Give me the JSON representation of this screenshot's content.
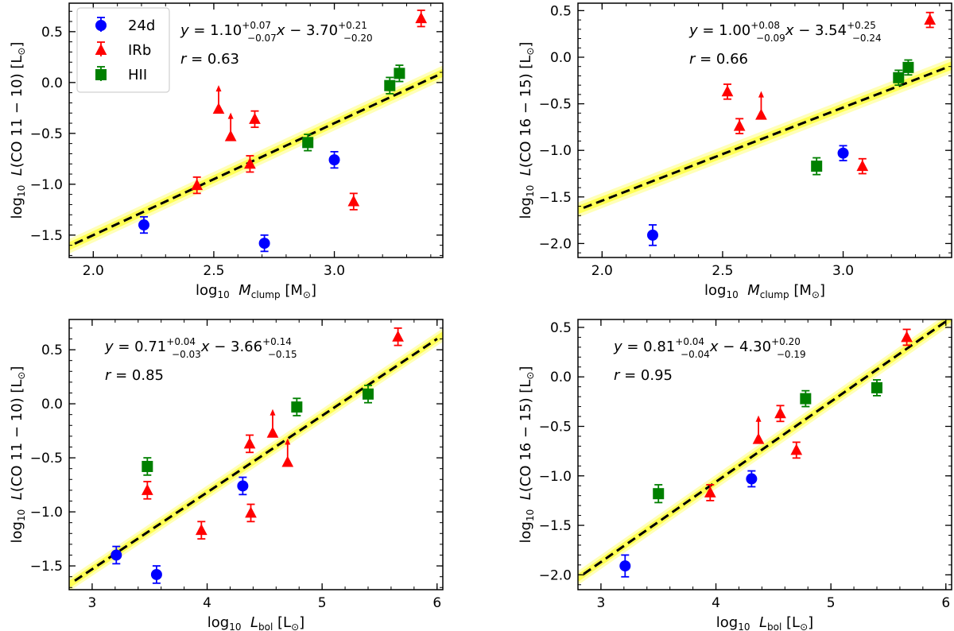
{
  "colors": {
    "24d": "#0000ff",
    "IRb": "#ff0000",
    "HII": "#008000",
    "fit_line": "#000000",
    "band": "#ffff33"
  },
  "legend": [
    {
      "key": "24d",
      "label": "24d",
      "marker": "circle"
    },
    {
      "key": "IRb",
      "label": "IRb",
      "marker": "triangle"
    },
    {
      "key": "HII",
      "label": "HII",
      "marker": "square"
    }
  ],
  "chart_data": [
    {
      "type": "scatter",
      "id": "panel-mclump-co11",
      "xlabel": {
        "pre": "log",
        "sub1": "10",
        "mid": " ",
        "var": "M",
        "sub2": "clump",
        "post": " [M",
        "sun": "⊙",
        "end": "]"
      },
      "ylabel": {
        "pre": "log",
        "sub1": "10",
        "mid": " ",
        "var": "L",
        "post": "(CO 11 − 10) [L",
        "sun": "⊙",
        "end": "]"
      },
      "xlim": [
        1.9,
        3.45
      ],
      "ylim": [
        -1.72,
        0.78
      ],
      "xticks": [
        2.0,
        2.5,
        3.0
      ],
      "xtick_labels": [
        "2.0",
        "2.5",
        "3.0"
      ],
      "yticks": [
        -1.5,
        -1.0,
        -0.5,
        0.0,
        0.5
      ],
      "ytick_labels": [
        "−1.5",
        "−1.0",
        "−0.5",
        "0.0",
        "0.5"
      ],
      "fit": {
        "slope": 1.1,
        "intercept": -3.7,
        "band": 0.04
      },
      "equation": {
        "y": "y",
        "eq": " = 1.10",
        "a_up": "+0.07",
        "a_lo": "−0.07",
        "x": "x",
        "minus": " − 3.70",
        "b_up": "+0.21",
        "b_lo": "−0.20"
      },
      "r_text": {
        "r": "r",
        "val": " = 0.63"
      },
      "eq_anchor": "top-center",
      "show_legend": true,
      "series": [
        {
          "name": "24d",
          "points": [
            [
              2.21,
              -1.4,
              0.08
            ],
            [
              2.71,
              -1.58,
              0.08
            ],
            [
              3.0,
              -0.76,
              0.08
            ]
          ]
        },
        {
          "name": "IRb",
          "points": [
            [
              2.43,
              -1.01,
              0.08
            ],
            [
              2.52,
              -0.26,
              0.0
            ],
            [
              2.57,
              -0.53,
              0.0
            ],
            [
              2.65,
              -0.8,
              0.08
            ],
            [
              2.67,
              -0.36,
              0.08
            ],
            [
              3.08,
              -1.17,
              0.08
            ],
            [
              3.36,
              0.63,
              0.08
            ]
          ]
        },
        {
          "name": "HII",
          "points": [
            [
              2.89,
              -0.59,
              0.08
            ],
            [
              3.23,
              -0.03,
              0.08
            ],
            [
              3.27,
              0.09,
              0.08
            ]
          ]
        }
      ],
      "limits": [
        {
          "name": "IRb",
          "x": 2.52,
          "y": -0.26
        },
        {
          "name": "IRb",
          "x": 2.57,
          "y": -0.53
        }
      ]
    },
    {
      "type": "scatter",
      "id": "panel-mclump-co16",
      "xlabel": {
        "pre": "log",
        "sub1": "10",
        "mid": " ",
        "var": "M",
        "sub2": "clump",
        "post": " [M",
        "sun": "⊙",
        "end": "]"
      },
      "ylabel": {
        "pre": "log",
        "sub1": "10",
        "mid": " ",
        "var": "L",
        "post": "(CO 16 − 15) [L",
        "sun": "⊙",
        "end": "]"
      },
      "xlim": [
        1.9,
        3.45
      ],
      "ylim": [
        -2.15,
        0.58
      ],
      "xticks": [
        2.0,
        2.5,
        3.0
      ],
      "xtick_labels": [
        "2.0",
        "2.5",
        "3.0"
      ],
      "yticks": [
        -2.0,
        -1.5,
        -1.0,
        -0.5,
        0.0,
        0.5
      ],
      "ytick_labels": [
        "−2.0",
        "−1.5",
        "−1.0",
        "−0.5",
        "0.0",
        "0.5"
      ],
      "fit": {
        "slope": 1.0,
        "intercept": -3.54,
        "band": 0.045
      },
      "equation": {
        "y": "y",
        "eq": " = 1.00",
        "a_up": "+0.08",
        "a_lo": "−0.09",
        "x": "x",
        "minus": " − 3.54",
        "b_up": "+0.25",
        "b_lo": "−0.24"
      },
      "r_text": {
        "r": "r",
        "val": " = 0.66"
      },
      "eq_anchor": "top-center",
      "show_legend": false,
      "series": [
        {
          "name": "24d",
          "points": [
            [
              2.21,
              -1.91,
              0.11
            ],
            [
              3.0,
              -1.03,
              0.08
            ]
          ]
        },
        {
          "name": "IRb",
          "points": [
            [
              2.52,
              -0.37,
              0.08
            ],
            [
              2.57,
              -0.74,
              0.08
            ],
            [
              2.66,
              -0.62,
              0.0
            ],
            [
              3.08,
              -1.17,
              0.08
            ],
            [
              3.36,
              0.4,
              0.08
            ]
          ]
        },
        {
          "name": "HII",
          "points": [
            [
              2.89,
              -1.17,
              0.09
            ],
            [
              3.23,
              -0.22,
              0.08
            ],
            [
              3.27,
              -0.11,
              0.08
            ]
          ]
        }
      ],
      "limits": [
        {
          "name": "IRb",
          "x": 2.66,
          "y": -0.62
        }
      ]
    },
    {
      "type": "scatter",
      "id": "panel-lbol-co11",
      "xlabel": {
        "pre": "log",
        "sub1": "10",
        "mid": " ",
        "var": "L",
        "sub2": "bol",
        "post": " [L",
        "sun": "⊙",
        "end": "]"
      },
      "ylabel": {
        "pre": "log",
        "sub1": "10",
        "mid": " ",
        "var": "L",
        "post": "(CO 11 − 10) [L",
        "sun": "⊙",
        "end": "]"
      },
      "xlim": [
        2.8,
        6.05
      ],
      "ylim": [
        -1.72,
        0.78
      ],
      "xticks": [
        3,
        4,
        5,
        6
      ],
      "xtick_labels": [
        "3",
        "4",
        "5",
        "6"
      ],
      "yticks": [
        -1.5,
        -1.0,
        -0.5,
        0.0,
        0.5
      ],
      "ytick_labels": [
        "−1.5",
        "−1.0",
        "−0.5",
        "0.0",
        "0.5"
      ],
      "fit": {
        "slope": 0.71,
        "intercept": -3.66,
        "band": 0.035
      },
      "equation": {
        "y": "y",
        "eq": " = 0.71",
        "a_up": "+0.04",
        "a_lo": "−0.03",
        "x": "x",
        "minus": " − 3.66",
        "b_up": "+0.14",
        "b_lo": "−0.15"
      },
      "r_text": {
        "r": "r",
        "val": " = 0.85"
      },
      "eq_anchor": "top-left",
      "show_legend": false,
      "series": [
        {
          "name": "24d",
          "points": [
            [
              3.21,
              -1.4,
              0.08
            ],
            [
              3.56,
              -1.58,
              0.08
            ],
            [
              4.31,
              -0.76,
              0.08
            ]
          ]
        },
        {
          "name": "IRb",
          "points": [
            [
              3.48,
              -0.8,
              0.08
            ],
            [
              3.95,
              -1.17,
              0.08
            ],
            [
              4.37,
              -0.37,
              0.08
            ],
            [
              4.38,
              -1.01,
              0.08
            ],
            [
              4.57,
              -0.27,
              0.0
            ],
            [
              4.7,
              -0.54,
              0.0
            ],
            [
              5.66,
              0.62,
              0.08
            ]
          ]
        },
        {
          "name": "HII",
          "points": [
            [
              3.48,
              -0.58,
              0.08
            ],
            [
              4.78,
              -0.03,
              0.08
            ],
            [
              5.4,
              0.09,
              0.08
            ]
          ]
        }
      ],
      "limits": [
        {
          "name": "IRb",
          "x": 4.57,
          "y": -0.27
        },
        {
          "name": "IRb",
          "x": 4.7,
          "y": -0.54
        }
      ]
    },
    {
      "type": "scatter",
      "id": "panel-lbol-co16",
      "xlabel": {
        "pre": "log",
        "sub1": "10",
        "mid": " ",
        "var": "L",
        "sub2": "bol",
        "post": " [L",
        "sun": "⊙",
        "end": "]"
      },
      "ylabel": {
        "pre": "log",
        "sub1": "10",
        "mid": " ",
        "var": "L",
        "post": "(CO 16 − 15) [L",
        "sun": "⊙",
        "end": "]"
      },
      "xlim": [
        2.8,
        6.05
      ],
      "ylim": [
        -2.15,
        0.58
      ],
      "xticks": [
        3,
        4,
        5,
        6
      ],
      "xtick_labels": [
        "3",
        "4",
        "5",
        "6"
      ],
      "yticks": [
        -2.0,
        -1.5,
        -1.0,
        -0.5,
        0.0,
        0.5
      ],
      "ytick_labels": [
        "−2.0",
        "−1.5",
        "−1.0",
        "−0.5",
        "0.0",
        "0.5"
      ],
      "fit": {
        "slope": 0.81,
        "intercept": -4.3,
        "band": 0.04
      },
      "equation": {
        "y": "y",
        "eq": " = 0.81",
        "a_up": "+0.04",
        "a_lo": "−0.04",
        "x": "x",
        "minus": " − 4.30",
        "b_up": "+0.20",
        "b_lo": "−0.19"
      },
      "r_text": {
        "r": "r",
        "val": " = 0.95"
      },
      "eq_anchor": "top-left",
      "show_legend": false,
      "series": [
        {
          "name": "24d",
          "points": [
            [
              3.21,
              -1.91,
              0.11
            ],
            [
              4.31,
              -1.03,
              0.08
            ]
          ]
        },
        {
          "name": "IRb",
          "points": [
            [
              3.95,
              -1.17,
              0.08
            ],
            [
              4.37,
              -0.63,
              0.0
            ],
            [
              4.56,
              -0.37,
              0.08
            ],
            [
              4.7,
              -0.74,
              0.08
            ],
            [
              5.66,
              0.4,
              0.08
            ]
          ]
        },
        {
          "name": "HII",
          "points": [
            [
              3.5,
              -1.18,
              0.09
            ],
            [
              4.78,
              -0.22,
              0.08
            ],
            [
              5.4,
              -0.11,
              0.08
            ]
          ]
        }
      ],
      "limits": [
        {
          "name": "IRb",
          "x": 4.37,
          "y": -0.63
        }
      ]
    }
  ]
}
